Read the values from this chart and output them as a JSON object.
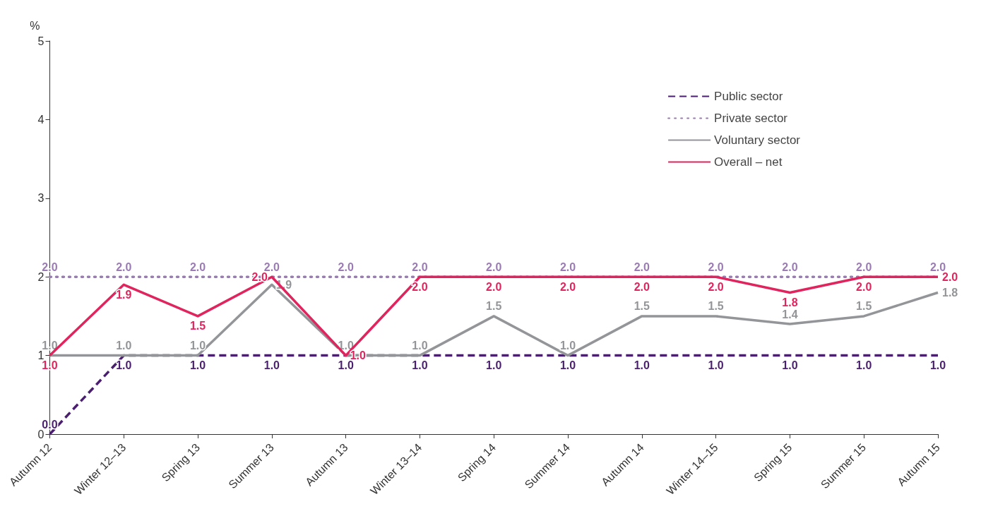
{
  "chart_data": {
    "type": "line",
    "ylabel": "%",
    "categories": [
      "Autumn 12",
      "Winter 12–13",
      "Spring 13",
      "Summer 13",
      "Autumn 13",
      "Winter 13–14",
      "Spring 14",
      "Summer 14",
      "Autumn 14",
      "Winter 14–15",
      "Spring 15",
      "Summer 15",
      "Autumn 15"
    ],
    "series": [
      {
        "name": "Public sector",
        "color": "#4b1f6f",
        "line_style": "dashed",
        "values": [
          0.0,
          1.0,
          1.0,
          1.0,
          1.0,
          1.0,
          1.0,
          1.0,
          1.0,
          1.0,
          1.0,
          1.0,
          1.0
        ],
        "value_labels": [
          "0.0",
          "1.0",
          "1.0",
          "1.0",
          "1.0",
          "1.0",
          "1.0",
          "1.0",
          "1.0",
          "1.0",
          "1.0",
          "1.0",
          "1.0"
        ]
      },
      {
        "name": "Private sector",
        "color": "#9a7bb4",
        "line_style": "dotted",
        "values": [
          2.0,
          2.0,
          2.0,
          2.0,
          2.0,
          2.0,
          2.0,
          2.0,
          2.0,
          2.0,
          2.0,
          2.0,
          2.0
        ],
        "value_labels": [
          "2.0",
          "2.0",
          "2.0",
          "2.0",
          "2.0",
          "2.0",
          "2.0",
          "2.0",
          "2.0",
          "2.0",
          "2.0",
          "2.0",
          "2.0"
        ]
      },
      {
        "name": "Voluntary sector",
        "color": "#939598",
        "line_style": "solid",
        "values": [
          1.0,
          1.0,
          1.0,
          1.9,
          1.0,
          1.0,
          1.5,
          1.0,
          1.5,
          1.5,
          1.4,
          1.5,
          1.8
        ],
        "value_labels": [
          "1.0",
          "1.0",
          "1.0",
          "1.9",
          "1.0",
          "1.0",
          "1.5",
          "1.0",
          "1.5",
          "1.5",
          "1.4",
          "1.5",
          "1.8"
        ]
      },
      {
        "name": "Overall – net",
        "color": "#e0245e",
        "line_style": "solid",
        "values": [
          1.0,
          1.9,
          1.5,
          2.0,
          1.0,
          2.0,
          2.0,
          2.0,
          2.0,
          2.0,
          1.8,
          2.0,
          2.0
        ],
        "value_labels": [
          "1.0",
          "1.9",
          "1.5",
          "2.0",
          "1.0",
          "2.0",
          "2.0",
          "2.0",
          "2.0",
          "2.0",
          "1.8",
          "2.0",
          "2.0"
        ]
      }
    ],
    "ylim": [
      0,
      5
    ],
    "yticks": [
      0,
      1,
      2,
      3,
      4,
      5
    ],
    "grid": false,
    "legend": "top right",
    "marker": "none"
  }
}
